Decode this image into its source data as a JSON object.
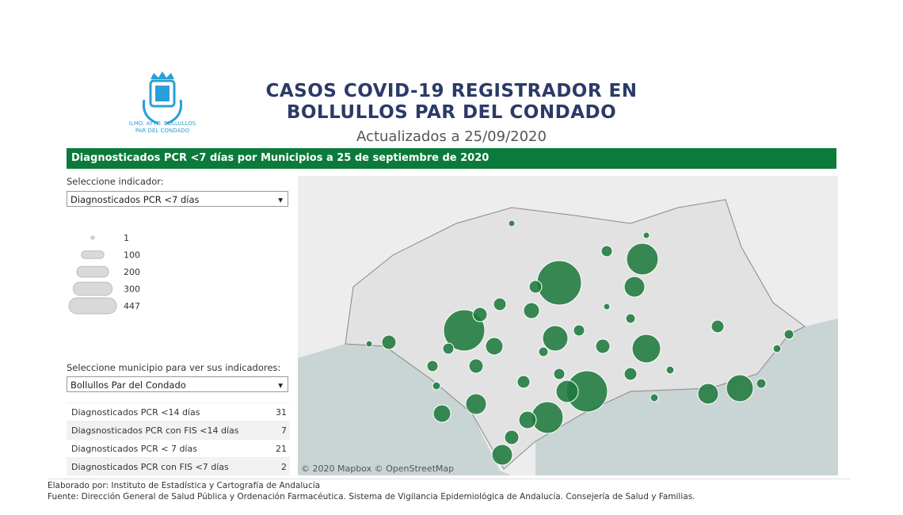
{
  "logo": {
    "caption_lines": [
      "ILMO. AYTO. BOLLULLOS",
      "PAR DEL CONDADO"
    ]
  },
  "header": {
    "title_lines": [
      "CASOS COVID-19 REGISTRADOR EN",
      "BOLLULLOS PAR DEL CONDADO"
    ],
    "subtitle": "Actualizados a 25/09/2020"
  },
  "banner": "Diagnosticados PCR <7 días por Municipios a 25 de septiembre de 2020",
  "indicator_selector": {
    "label": "Seleccione indicador:",
    "value": "Diagnosticados PCR <7 días"
  },
  "size_legend": [
    1,
    100,
    200,
    300,
    447
  ],
  "municipality_selector": {
    "label": "Seleccione municipio para ver sus indicadores:",
    "value": "Bollullos Par del Condado"
  },
  "indicators_table": {
    "rows": [
      [
        "Diagnosticados PCR <14 días",
        31
      ],
      [
        "Diagsnosticados PCR con FIS <14 días",
        7
      ],
      [
        "Diagnosticados PCR < 7 días",
        21
      ],
      [
        "Diagnosticados PCR con FIS <7 días",
        2
      ]
    ]
  },
  "map": {
    "attribution": "© 2020 Mapbox © OpenStreetMap"
  },
  "footer": {
    "lines": [
      "Elaborado por: Instituto de Estadística y Cartografía de Andalucía",
      "Fuente: Dirección General de Salud Pública y Ordenación Farmacéutica. Sistema de Vigilancia Epidemiológica de Andalucía. Consejería de Salud y Familias."
    ]
  }
}
